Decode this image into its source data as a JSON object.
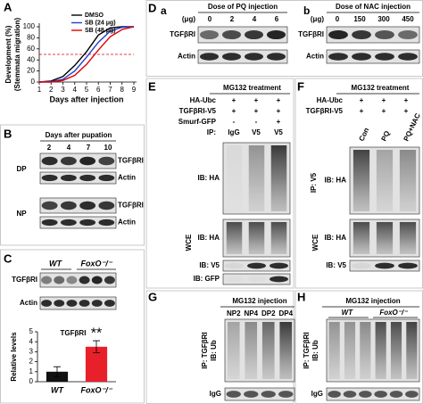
{
  "panels": {
    "A": {
      "label": "A",
      "chart": {
        "type": "line",
        "y_label": [
          "Development (%)",
          "(Stemmata migration)"
        ],
        "x_label": "Days after injection",
        "x": [
          1,
          2,
          3,
          4,
          5,
          6,
          7,
          8,
          9
        ],
        "xlim": [
          1,
          9
        ],
        "ylim": [
          0,
          100
        ],
        "xticks": [
          1,
          2,
          3,
          4,
          5,
          6,
          7,
          8,
          9
        ],
        "yticks": [
          0,
          20,
          40,
          60,
          80,
          100
        ],
        "reference_line": {
          "value": 50,
          "color": "#e00000"
        },
        "series": [
          {
            "name": "DMSO",
            "color": "#000000",
            "values": [
              0,
              2,
              10,
              30,
              55,
              85,
              98,
              100,
              100
            ]
          },
          {
            "name": "SB (24 μg)",
            "color": "#1f3fd0",
            "values": [
              0,
              1,
              5,
              20,
              45,
              72,
              92,
              99,
              100
            ]
          },
          {
            "name": "SB (48 μg)",
            "color": "#e00000",
            "values": [
              0,
              0,
              3,
              12,
              32,
              58,
              82,
              95,
              100
            ]
          }
        ]
      }
    },
    "B": {
      "label": "B",
      "header": "Days after pupation",
      "lanes": [
        "2",
        "4",
        "7",
        "10"
      ],
      "groups": [
        {
          "label": "DP",
          "rows": [
            "TGFβRI",
            "Actin"
          ]
        },
        {
          "label": "NP",
          "rows": [
            "TGFβRI",
            "Actin"
          ]
        }
      ]
    },
    "C": {
      "label": "C",
      "genotypes": [
        "WT",
        "FoxO⁻/⁻"
      ],
      "rows": [
        "TGFβRI",
        "Actin"
      ],
      "chart": {
        "type": "bar",
        "title": "TGFβRI",
        "y_label": "Relative levels",
        "categories": [
          "WT",
          "FoxO⁻/⁻"
        ],
        "values": [
          1,
          3.5
        ],
        "errors": [
          0.5,
          0.6
        ],
        "colors": [
          "#111111",
          "#e8202a"
        ],
        "ylim": [
          0,
          5
        ],
        "yticks": [
          0,
          1,
          2,
          3,
          4,
          5
        ],
        "annotation": "**"
      }
    },
    "D": {
      "label": "D",
      "a": {
        "label": "a",
        "header": "Dose of PQ injection",
        "unit": "(μg)",
        "lanes": [
          "0",
          "2",
          "4",
          "6"
        ],
        "rows": [
          "TGFβRI",
          "Actin"
        ]
      },
      "b": {
        "label": "b",
        "header": "Dose of NAC injection",
        "unit": "(μg)",
        "lanes": [
          "0",
          "150",
          "300",
          "450"
        ],
        "rows": [
          "TGFβRI",
          "Actin"
        ]
      }
    },
    "E": {
      "label": "E",
      "header": "MG132 treatment",
      "conditions": [
        {
          "label": "HA-Ubc",
          "signs": [
            "+",
            "+",
            "+"
          ]
        },
        {
          "label": "TGFβRI-V5",
          "signs": [
            "+",
            "+",
            "+"
          ]
        },
        {
          "label": "Smurf-GFP",
          "signs": [
            "-",
            "-",
            "+"
          ]
        },
        {
          "label": "IP:",
          "signs": [
            "IgG",
            "V5",
            "V5"
          ]
        }
      ],
      "ip_blot": "IB: HA",
      "wce": "WCE",
      "wce_blots": [
        "IB: HA",
        "IB: V5",
        "IB: GFP"
      ]
    },
    "F": {
      "label": "F",
      "header": "MG132 treatment",
      "conditions": [
        {
          "label": "HA-Ubc",
          "signs": [
            "+",
            "+",
            "+"
          ]
        },
        {
          "label": "TGFβRI-V5",
          "signs": [
            "+",
            "+",
            "+"
          ]
        }
      ],
      "lanes": [
        "Con",
        "PQ",
        "PQ+NAC"
      ],
      "ip": "IP: V5",
      "ip_blot": "IB: HA",
      "wce": "WCE",
      "wce_blots": [
        "IB: HA",
        "IB: V5"
      ]
    },
    "G": {
      "label": "G",
      "header": "MG132 injection",
      "lanes": [
        "NP2",
        "NP4",
        "DP2",
        "DP4"
      ],
      "ip": "IP: TGFβRI",
      "ib": "IB: Ub",
      "control": "IgG"
    },
    "H": {
      "label": "H",
      "header": "MG132 injection",
      "genotypes": [
        "WT",
        "FoxO⁻/⁻"
      ],
      "ip": "IP: TGFβRI",
      "ib": "IB: Ub",
      "control": "IgG"
    }
  }
}
